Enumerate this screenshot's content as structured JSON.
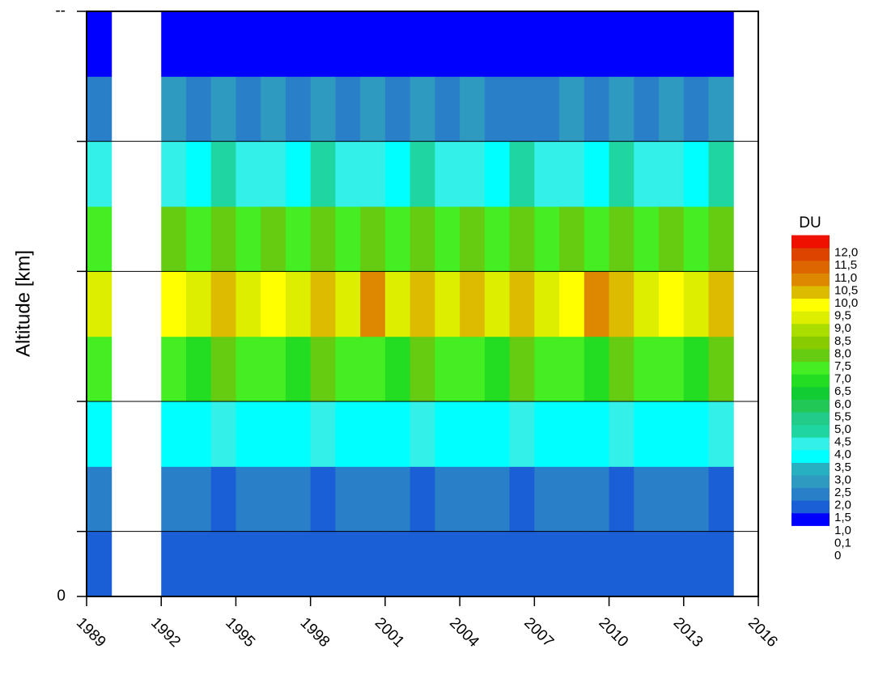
{
  "chart_data": {
    "type": "heatmap",
    "y_label": "Altitude [km]",
    "x": [
      1989,
      1990,
      1991,
      1992,
      1993,
      1994,
      1995,
      1996,
      1997,
      1998,
      1999,
      2000,
      2001,
      2002,
      2003,
      2004,
      2005,
      2006,
      2007,
      2008,
      2009,
      2010,
      2011,
      2012,
      2013,
      2014
    ],
    "y_bins": [
      0,
      5,
      10,
      15,
      20,
      25,
      30,
      35,
      40,
      45
    ],
    "z": [
      [
        1.2,
        1.6,
        3.2,
        6.5,
        8.8,
        6.8,
        3.6,
        1.8,
        0.4
      ],
      null,
      null,
      [
        1.1,
        1.5,
        3.4,
        6.8,
        9.3,
        7.2,
        3.8,
        2.0,
        0.5
      ],
      [
        1.3,
        1.7,
        3.0,
        6.2,
        8.5,
        6.5,
        3.4,
        1.6,
        0.3
      ],
      [
        1.0,
        1.4,
        3.6,
        7.0,
        9.6,
        7.4,
        4.0,
        2.2,
        0.6
      ],
      [
        1.2,
        1.6,
        3.2,
        6.5,
        8.8,
        6.8,
        3.6,
        1.8,
        0.4
      ],
      [
        1.1,
        1.5,
        3.4,
        6.8,
        9.3,
        7.2,
        3.8,
        2.0,
        0.5
      ],
      [
        1.3,
        1.7,
        3.0,
        6.2,
        8.5,
        6.5,
        3.4,
        1.6,
        0.3
      ],
      [
        1.0,
        1.4,
        3.6,
        7.0,
        9.6,
        7.4,
        4.0,
        2.2,
        0.6
      ],
      [
        1.2,
        1.6,
        3.2,
        6.5,
        8.8,
        6.8,
        3.6,
        1.8,
        0.4
      ],
      [
        1.1,
        1.5,
        3.4,
        6.8,
        10.2,
        7.2,
        3.8,
        2.0,
        0.5
      ],
      [
        1.3,
        1.7,
        3.0,
        6.2,
        8.5,
        6.5,
        3.4,
        1.6,
        0.3
      ],
      [
        1.0,
        1.4,
        3.6,
        7.0,
        9.6,
        7.4,
        4.0,
        2.2,
        0.6
      ],
      [
        1.2,
        1.6,
        3.2,
        6.5,
        8.8,
        6.8,
        3.6,
        1.8,
        0.4
      ],
      [
        1.1,
        1.5,
        3.4,
        6.8,
        9.8,
        7.2,
        3.8,
        2.0,
        0.5
      ],
      [
        1.3,
        1.7,
        3.0,
        6.2,
        8.5,
        6.5,
        3.4,
        1.6,
        0.3
      ],
      [
        1.0,
        1.4,
        3.6,
        7.0,
        9.6,
        7.4,
        4.0,
        1.6,
        0.3
      ],
      [
        1.2,
        1.6,
        3.2,
        6.5,
        8.8,
        6.8,
        3.6,
        1.8,
        0.4
      ],
      [
        1.1,
        1.5,
        3.4,
        6.8,
        9.3,
        7.2,
        3.8,
        2.0,
        0.5
      ],
      [
        1.3,
        1.7,
        3.0,
        6.2,
        10.1,
        6.5,
        3.4,
        1.6,
        0.3
      ],
      [
        1.0,
        1.4,
        3.6,
        7.0,
        9.6,
        7.4,
        4.0,
        2.2,
        0.6
      ],
      [
        1.2,
        1.6,
        3.2,
        6.5,
        8.8,
        6.8,
        3.6,
        1.8,
        0.4
      ],
      [
        1.1,
        1.5,
        3.4,
        6.8,
        9.3,
        7.2,
        3.8,
        2.0,
        0.5
      ],
      [
        1.3,
        1.7,
        3.0,
        6.2,
        8.5,
        6.5,
        3.4,
        1.6,
        0.3
      ],
      [
        1.0,
        1.4,
        3.6,
        7.0,
        9.6,
        7.4,
        4.0,
        2.2,
        0.6
      ]
    ],
    "xlim": [
      1989,
      2016
    ],
    "xticks": [
      1989,
      1992,
      1995,
      1998,
      2001,
      2004,
      2007,
      2010,
      2013,
      2016
    ],
    "ylim": [
      0,
      45
    ],
    "yticks": [
      0,
      {
        "value": 5,
        "label": null
      },
      {
        "value": 15,
        "label": null
      },
      {
        "value": 25,
        "label": null
      },
      {
        "value": 35,
        "label": null
      },
      {
        "value": 45,
        "label": "--"
      }
    ],
    "grid": true,
    "colorbar": {
      "title": "DU",
      "ticks": [
        0,
        {
          "value": 0.1,
          "label": "0,1"
        },
        {
          "value": 1.0,
          "label": "1,0"
        },
        {
          "value": 1.5,
          "label": "1,5"
        },
        {
          "value": 2.0,
          "label": "2,0"
        },
        {
          "value": 2.5,
          "label": "2,5"
        },
        {
          "value": 3.0,
          "label": "3,0"
        },
        {
          "value": 3.5,
          "label": "3,5"
        },
        {
          "value": 4.0,
          "label": "4,0"
        },
        {
          "value": 4.5,
          "label": "4,5"
        },
        {
          "value": 5.0,
          "label": "5,0"
        },
        {
          "value": 5.5,
          "label": "5,5"
        },
        {
          "value": 6.0,
          "label": "6,0"
        },
        {
          "value": 6.5,
          "label": "6,5"
        },
        {
          "value": 7.0,
          "label": "7,0"
        },
        {
          "value": 7.5,
          "label": "7,5"
        },
        {
          "value": 8.0,
          "label": "8,0"
        },
        {
          "value": 8.5,
          "label": "8,5"
        },
        {
          "value": 9.0,
          "label": "9,0"
        },
        {
          "value": 9.5,
          "label": "9,5"
        },
        {
          "value": 10.0,
          "label": "10,0"
        },
        {
          "value": 10.5,
          "label": "10,5"
        },
        {
          "value": 11.0,
          "label": "11,0"
        },
        {
          "value": 11.5,
          "label": "11,5"
        },
        {
          "value": 12.0,
          "label": "12,0"
        }
      ],
      "colors": [
        "#ffffff",
        "#0000ff",
        "#1a5fd6",
        "#2a80c8",
        "#2f9ac0",
        "#26b0c0",
        "#00ffff",
        "#33f0e8",
        "#1fd6a0",
        "#22cc88",
        "#22c855",
        "#11cc33",
        "#22dd22",
        "#44ee22",
        "#66cc11",
        "#88cc00",
        "#aadd00",
        "#ddee00",
        "#ffff00",
        "#ddbb00",
        "#dd8800",
        "#dd6600",
        "#dd4400",
        "#ee1100"
      ]
    }
  }
}
